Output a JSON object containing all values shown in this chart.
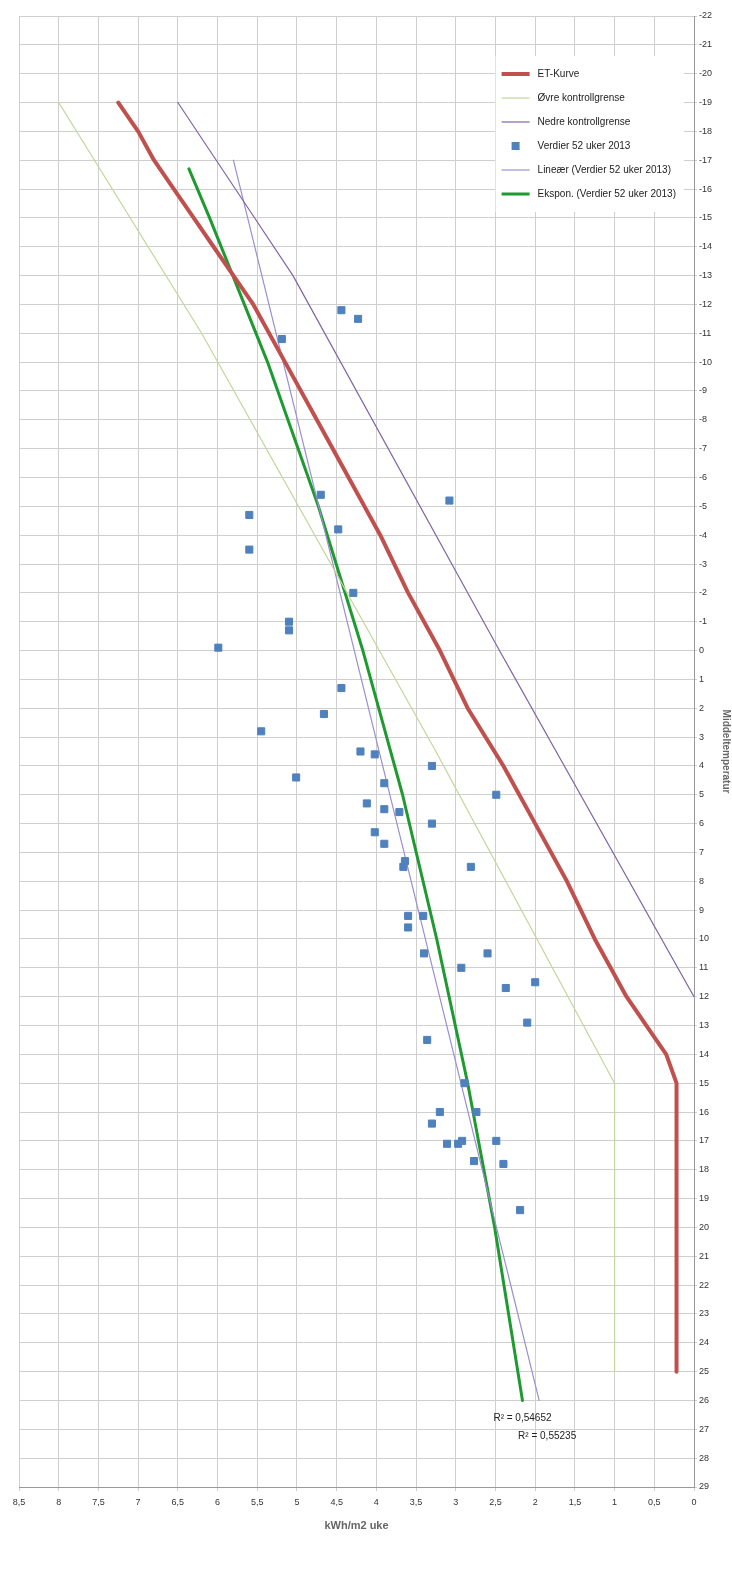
{
  "chart_data": {
    "type": "line",
    "xlabel": "kWh/m2 uke",
    "ylabel": "Middeltemperatur",
    "xlim": [
      8.5,
      0
    ],
    "ylim": [
      29,
      -22
    ],
    "xticks": [
      {
        "value": 8.5,
        "label": "8,5"
      },
      8,
      {
        "value": 7.5,
        "label": "7,5"
      },
      7,
      {
        "value": 6.5,
        "label": "6,5"
      },
      6,
      {
        "value": 5.5,
        "label": "5,5"
      },
      5,
      {
        "value": 4.5,
        "label": "4,5"
      },
      4,
      {
        "value": 3.5,
        "label": "3,5"
      },
      3,
      {
        "value": 2.5,
        "label": "2,5"
      },
      2,
      {
        "value": 1.5,
        "label": "1,5"
      },
      1,
      {
        "value": 0.5,
        "label": "0,5"
      },
      0
    ],
    "yticks": [
      29,
      28,
      27,
      26,
      25,
      24,
      23,
      22,
      21,
      20,
      19,
      18,
      17,
      16,
      15,
      14,
      13,
      12,
      11,
      10,
      9,
      8,
      7,
      6,
      5,
      4,
      3,
      2,
      1,
      0,
      -1,
      -2,
      -3,
      -4,
      -5,
      -6,
      -7,
      -8,
      -9,
      -10,
      -11,
      -12,
      -13,
      -14,
      -15,
      -16,
      -17,
      -18,
      -19,
      -20,
      -21,
      -22
    ],
    "grid": true,
    "legend": "top right",
    "series": [
      {
        "name": "ET-Kurve",
        "type": "line",
        "color": "#c0504d",
        "marker": "none",
        "values": [
          25,
          15,
          14,
          13,
          12,
          11,
          10,
          8,
          6,
          4,
          2,
          0,
          -2,
          -4,
          -6,
          -8,
          -10,
          -12,
          -13,
          -14,
          -15,
          -16,
          -17,
          -18,
          -19
        ],
        "x": [
          0.22,
          0.22,
          0.35,
          0.6,
          0.85,
          1.05,
          1.25,
          1.6,
          2.0,
          2.4,
          2.85,
          3.2,
          3.6,
          3.95,
          4.35,
          4.75,
          5.15,
          5.55,
          5.8,
          6.05,
          6.3,
          6.55,
          6.8,
          7.0,
          7.25
        ]
      },
      {
        "name": "Øvre kontrollgrense",
        "type": "line",
        "color": "#c3d69b",
        "marker": "none",
        "values": [
          25,
          15,
          3.5,
          -11,
          -19
        ],
        "x": [
          1,
          1,
          3.25,
          6.2,
          8
        ]
      },
      {
        "name": "Nedre kontrollgrense",
        "type": "line",
        "color": "#8064a2",
        "marker": "none",
        "values": [
          12,
          0,
          -13,
          -19
        ],
        "x": [
          0,
          2.45,
          5.05,
          6.5
        ]
      },
      {
        "name": "Verdier 52 uker 2013",
        "type": "scatter",
        "color": "#4f81bd",
        "marker": "square",
        "values": [
          -11.8,
          -11.5,
          -10.8,
          -5.4,
          -4.7,
          -4.2,
          -3.5,
          -5.2,
          -2.0,
          -0.7,
          -1.0,
          -0.1,
          1.3,
          2.2,
          2.8,
          3.5,
          3.6,
          4.4,
          4.0,
          4.6,
          5.0,
          5.3,
          5.5,
          5.6,
          6.0,
          6.3,
          6.7,
          7.3,
          7.5,
          7.5,
          9.2,
          9.2,
          9.6,
          10.5,
          10.5,
          11.0,
          11.7,
          11.5,
          12.9,
          13.5,
          15.0,
          16.0,
          16.4,
          16.0,
          17.1,
          17.1,
          17.0,
          17.0,
          17.7,
          17.8,
          19.4
        ],
        "x": [
          4.44,
          4.23,
          5.19,
          4.7,
          5.6,
          4.48,
          5.6,
          3.08,
          4.29,
          5.1,
          5.1,
          5.99,
          4.44,
          4.66,
          5.45,
          4.2,
          4.02,
          5.01,
          3.3,
          3.9,
          2.49,
          4.12,
          3.9,
          3.71,
          3.3,
          4.02,
          3.9,
          3.64,
          3.66,
          2.81,
          3.6,
          3.41,
          3.6,
          3.4,
          2.6,
          2.93,
          2.37,
          2.0,
          2.1,
          3.36,
          2.89,
          3.2,
          3.3,
          2.74,
          3.11,
          2.97,
          2.92,
          2.49,
          2.77,
          2.4,
          2.19
        ]
      },
      {
        "name": "Lineær (Verdier 52 uker 2013)",
        "type": "line",
        "color": "#9b8fd0",
        "marker": "none",
        "values": [
          26,
          -17
        ],
        "x": [
          1.95,
          5.8
        ]
      },
      {
        "name": "Ekspon. (Verdier 52 uker 2013)",
        "type": "line",
        "color": "#1f9a30",
        "marker": "none",
        "values": [
          26,
          20,
          15,
          10,
          5,
          0,
          -5,
          -10,
          -15,
          -16.7
        ],
        "x": [
          2.16,
          2.51,
          2.85,
          3.24,
          3.67,
          4.17,
          4.73,
          5.37,
          6.1,
          6.36
        ]
      }
    ],
    "annotations": [
      "R² = 0,54652",
      "R² = 0,55235"
    ]
  }
}
